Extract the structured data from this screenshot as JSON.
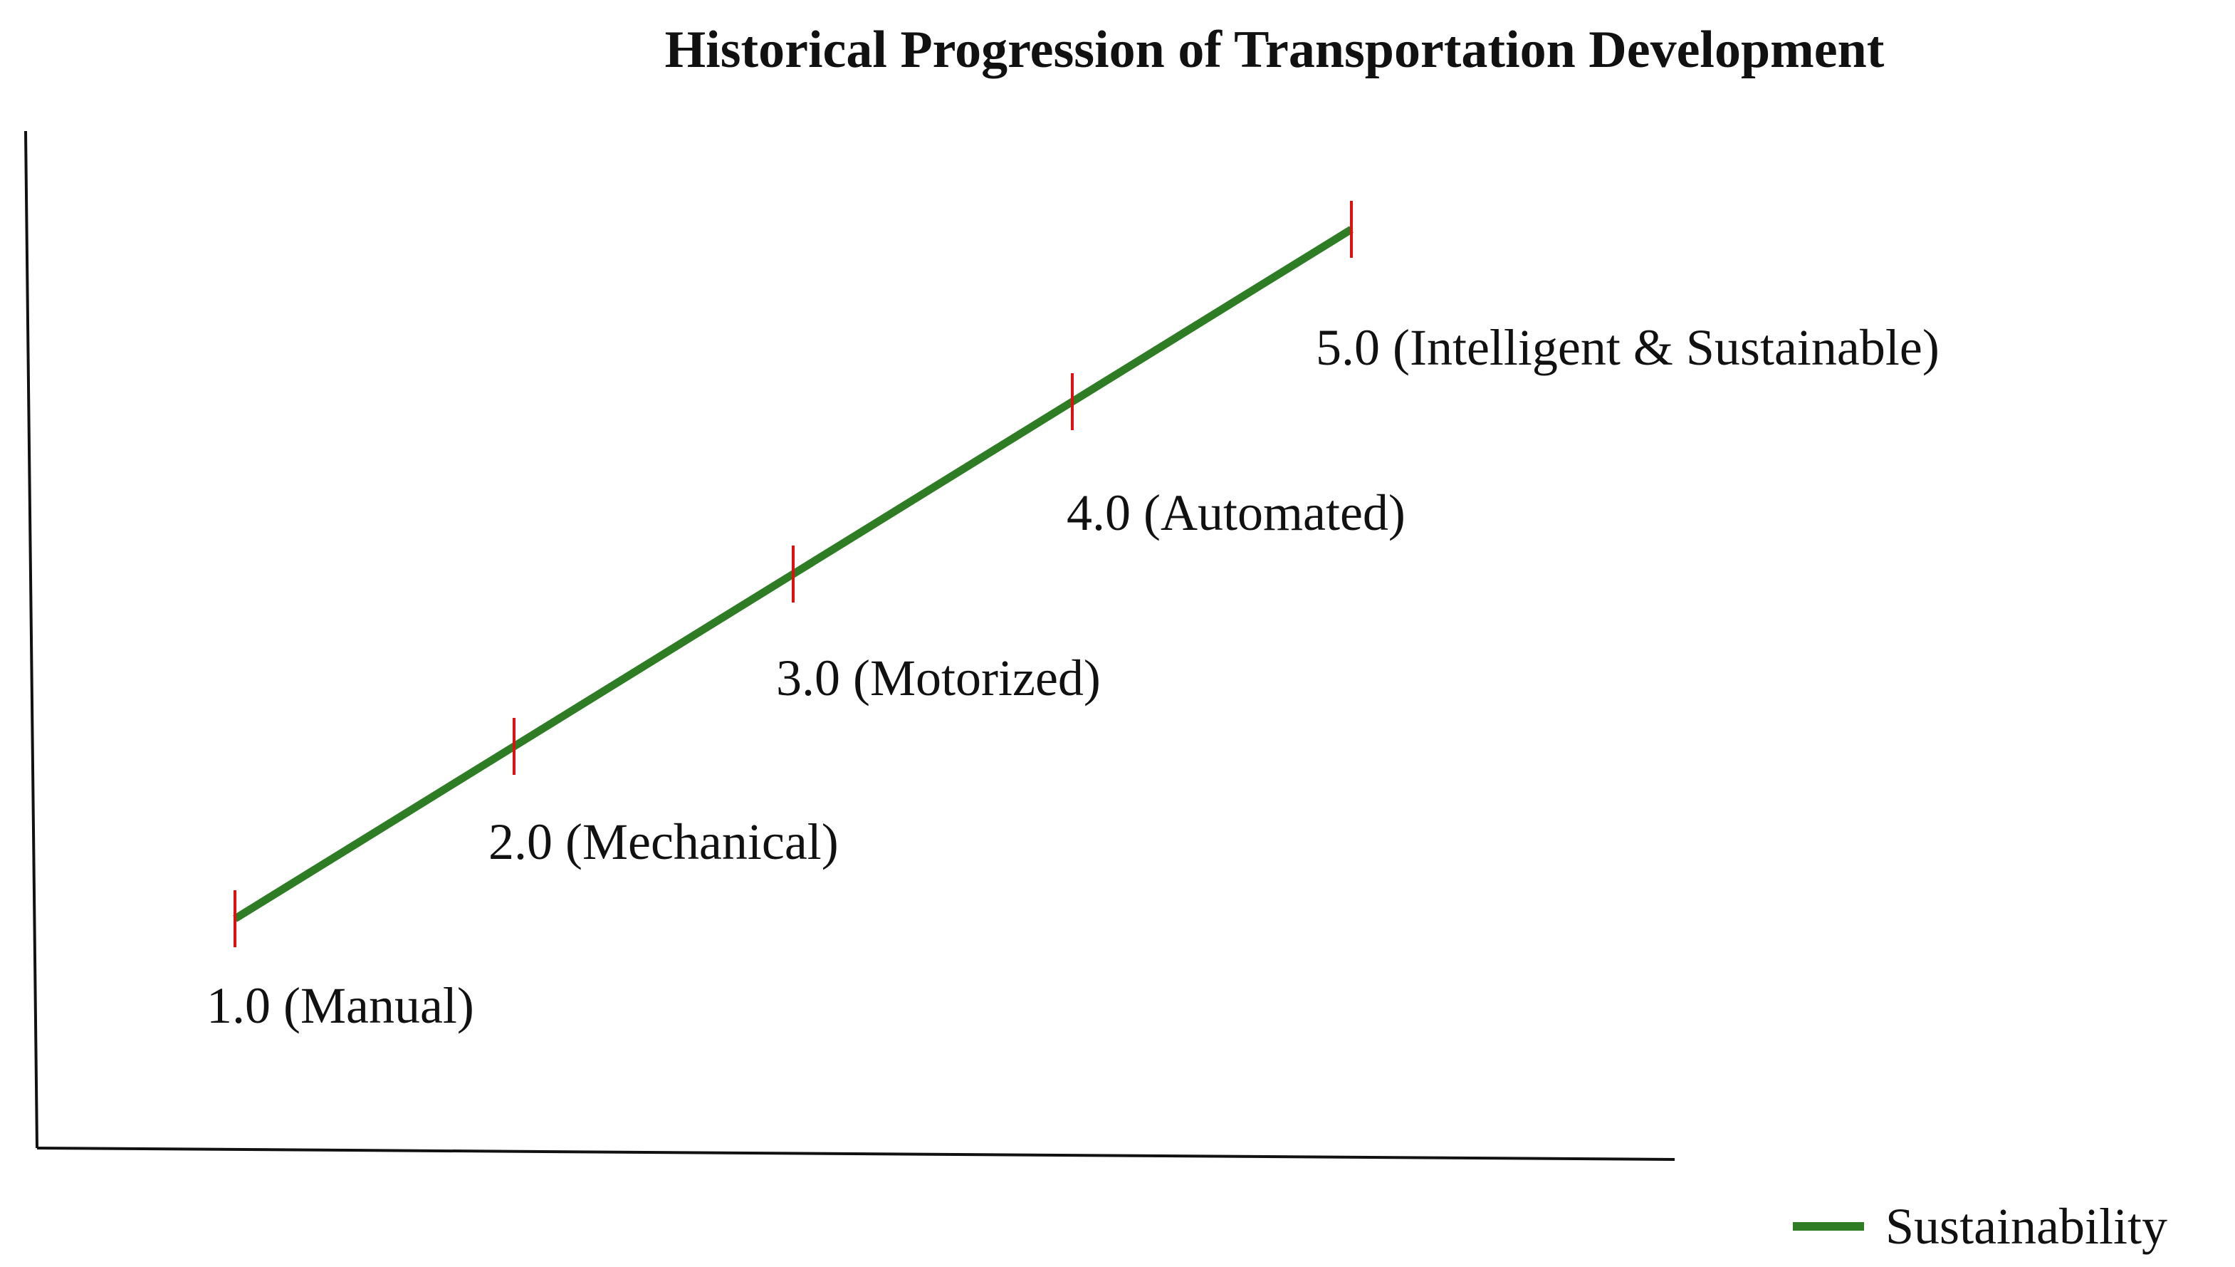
{
  "chart_data": {
    "type": "line",
    "title": "Historical Progression of Transportation Development",
    "xlabel": "",
    "ylabel": "",
    "grid": false,
    "legend_position": "bottom-right",
    "series": [
      {
        "name": "Sustainability",
        "color": "#2e7d25",
        "points": [
          {
            "x": 1.0,
            "y": 1.0,
            "label": "1.0 (Manual)"
          },
          {
            "x": 2.0,
            "y": 2.0,
            "label": "2.0 (Mechanical)"
          },
          {
            "x": 3.0,
            "y": 3.0,
            "label": "3.0 (Motorized)"
          },
          {
            "x": 4.0,
            "y": 4.0,
            "label": "4.0 (Automated)"
          },
          {
            "x": 5.0,
            "y": 5.0,
            "label": "5.0 (Intelligent & Sustainable)"
          }
        ]
      }
    ],
    "marker_color": "#e01010",
    "axis_color": "#111111"
  }
}
